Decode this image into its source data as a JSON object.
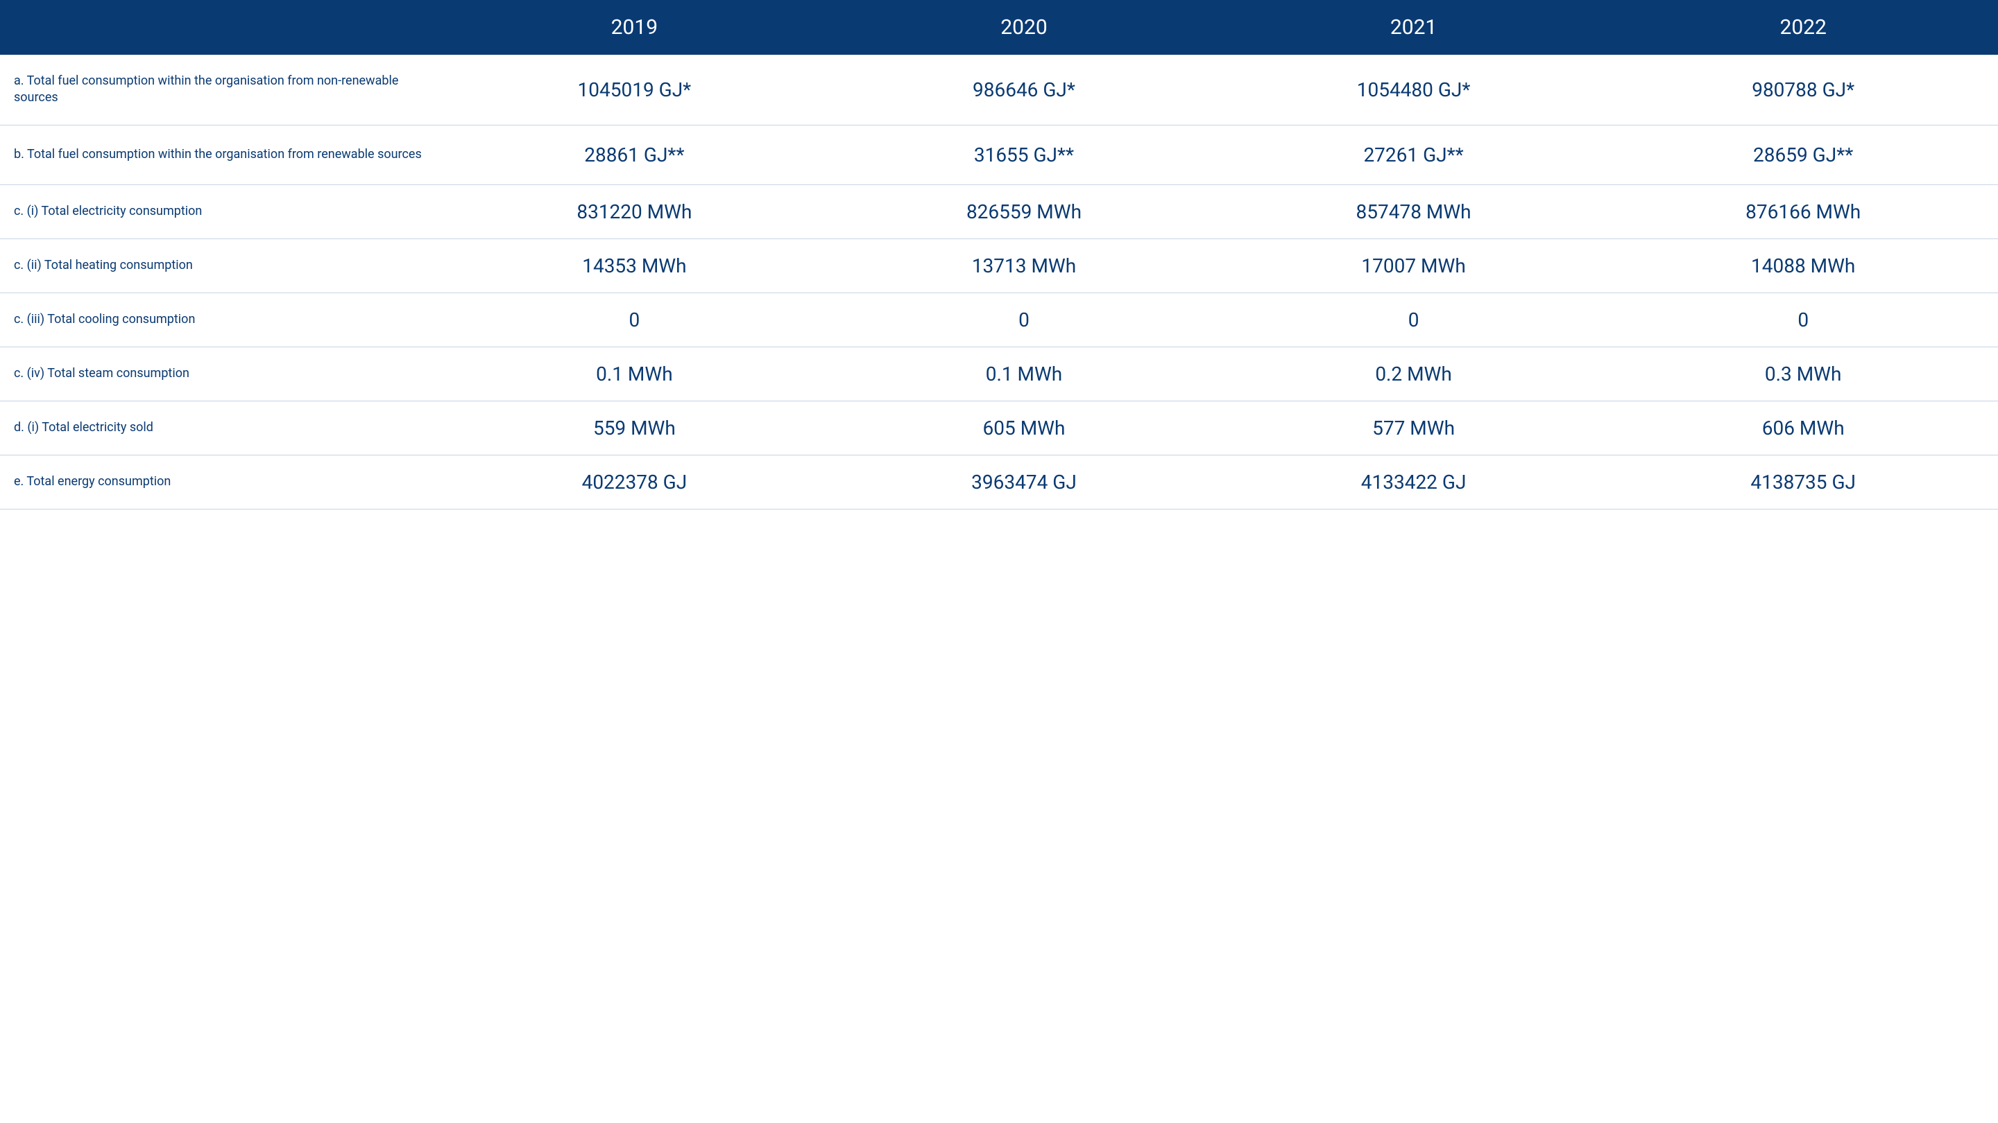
{
  "table": {
    "header_bg": "#0a3a72",
    "header_text_color": "#ffffff",
    "header_fontsize": 30,
    "row_label_color": "#0a3a72",
    "row_label_fontsize": 18,
    "data_cell_color": "#0a3a72",
    "data_cell_fontsize": 28,
    "border_color": "#c7d4e4",
    "background_color": "#ffffff",
    "columns": [
      "",
      "2019",
      "2020",
      "2021",
      "2022"
    ],
    "rows": [
      {
        "label": "a. Total fuel consumption within the organisation from non-renewable sources",
        "values": [
          "1045019 GJ*",
          "986646 GJ*",
          "1054480 GJ*",
          "980788 GJ*"
        ]
      },
      {
        "label": "b. Total fuel consumption within the organisation from renewable sources",
        "values": [
          "28861 GJ**",
          "31655 GJ**",
          "27261 GJ**",
          "28659 GJ**"
        ]
      },
      {
        "label": "c. (i) Total electricity consumption",
        "values": [
          "831220 MWh",
          "826559 MWh",
          "857478 MWh",
          "876166 MWh"
        ]
      },
      {
        "label": "c. (ii) Total heating consumption",
        "values": [
          "14353 MWh",
          "13713 MWh",
          "17007 MWh",
          "14088 MWh"
        ]
      },
      {
        "label": "c. (iii) Total cooling consumption",
        "values": [
          "0",
          "0",
          "0",
          "0"
        ]
      },
      {
        "label": "c. (iv) Total steam consumption",
        "values": [
          "0.1 MWh",
          "0.1 MWh",
          "0.2 MWh",
          "0.3 MWh"
        ]
      },
      {
        "label": "d. (i) Total electricity sold",
        "values": [
          "559 MWh",
          "605 MWh",
          "577 MWh",
          "606 MWh"
        ]
      },
      {
        "label": "e. Total energy consumption",
        "values": [
          "4022378 GJ",
          "3963474 GJ",
          "4133422 GJ",
          "4138735 GJ"
        ]
      }
    ]
  }
}
